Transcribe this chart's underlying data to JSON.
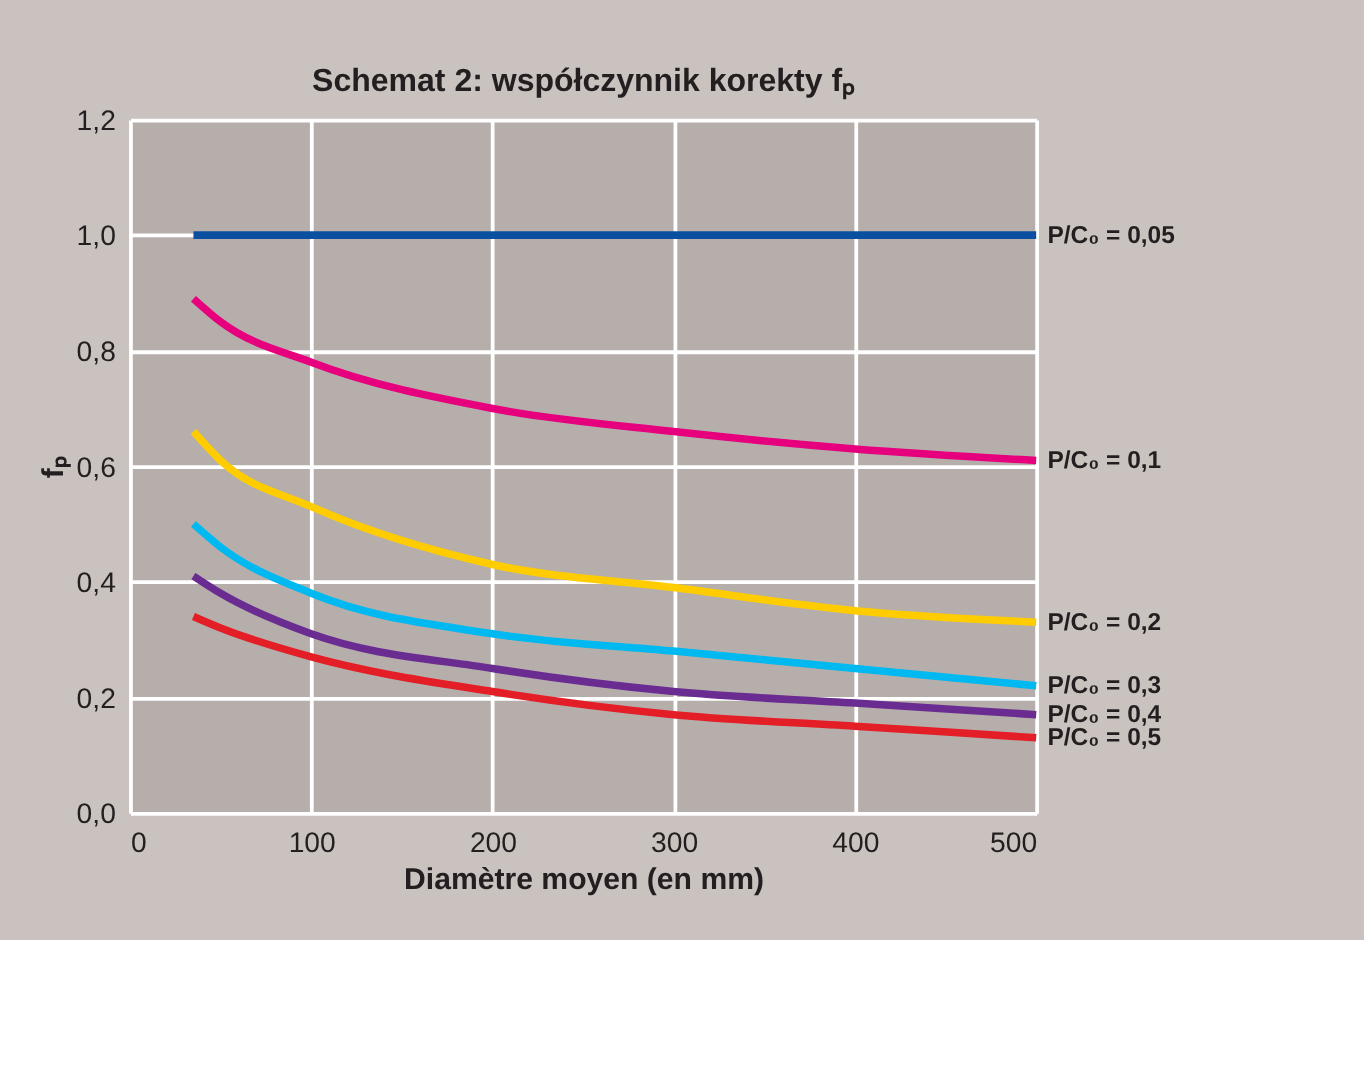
{
  "chart_data": {
    "type": "line",
    "title": "Schemat 2: współczynnik korekty  fₚ",
    "xlabel": "Diamètre moyen (en mm)",
    "ylabel": "fₚ",
    "x": [
      35,
      50,
      100,
      200,
      300,
      400,
      500
    ],
    "series": [
      {
        "name": "P/C₀ = 0,05",
        "color": "#0b4fa0",
        "values": [
          1.0,
          1.0,
          1.0,
          1.0,
          1.0,
          1.0,
          1.0
        ]
      },
      {
        "name": "P/C₀ = 0,1",
        "color": "#e6007e",
        "values": [
          0.89,
          0.85,
          0.78,
          0.7,
          0.66,
          0.63,
          0.61
        ]
      },
      {
        "name": "P/C₀ = 0,2",
        "color": "#ffcc00",
        "values": [
          0.66,
          0.61,
          0.53,
          0.43,
          0.39,
          0.35,
          0.33
        ]
      },
      {
        "name": "P/C₀ = 0,3",
        "color": "#00b9f0",
        "values": [
          0.5,
          0.46,
          0.38,
          0.31,
          0.28,
          0.25,
          0.22
        ]
      },
      {
        "name": "P/C₀ = 0,4",
        "color": "#6a2c91",
        "values": [
          0.41,
          0.38,
          0.31,
          0.25,
          0.21,
          0.19,
          0.17
        ]
      },
      {
        "name": "P/C₀ = 0,5",
        "color": "#e41e26",
        "values": [
          0.34,
          0.32,
          0.27,
          0.21,
          0.17,
          0.15,
          0.13
        ]
      }
    ],
    "xlim": [
      0,
      500
    ],
    "xticks": [
      0,
      100,
      200,
      300,
      400,
      500
    ],
    "ylim": [
      0,
      1.2
    ],
    "yticks": [
      {
        "value": 0,
        "label": "0,0"
      },
      {
        "value": 0.2,
        "label": "0,2"
      },
      {
        "value": 0.4,
        "label": "0,4"
      },
      {
        "value": 0.6,
        "label": "0,6"
      },
      {
        "value": 0.8,
        "label": "0,8"
      },
      {
        "value": 1.0,
        "label": "1,0"
      },
      {
        "value": 1.2,
        "label": "1,2"
      }
    ],
    "grid": true,
    "legend": false,
    "marker": "none",
    "line_style": "solid"
  }
}
